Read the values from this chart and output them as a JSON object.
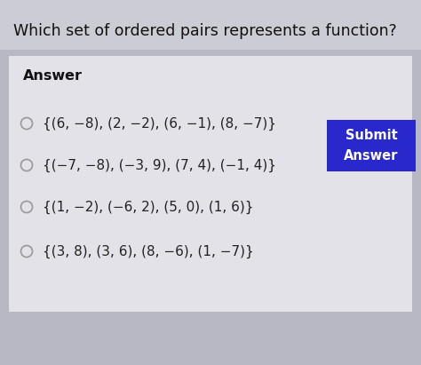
{
  "question": "Which set of ordered pairs represents a function?",
  "answer_label": "Answer",
  "options": [
    "{(6, −8), (2, −2), (6, −1), (8, −7)}",
    "{(−7, −8), (−3, 9), (7, 4), (−1, 4)}",
    "{(1, −2), (−6, 2), (5, 0), (1, 6)}",
    "{(3, 8), (3, 6), (8, −6), (1, −7)}"
  ],
  "outer_bg": "#b8b8c4",
  "question_bg": "#ccccd4",
  "answer_box_color": "#e2e2e8",
  "submit_bg": "#2828cc",
  "submit_text_color": "#ffffff",
  "question_color": "#111111",
  "answer_label_color": "#111111",
  "option_color": "#222222",
  "circle_color": "#999999",
  "fig_width": 4.74,
  "fig_height": 4.11,
  "dpi": 100
}
